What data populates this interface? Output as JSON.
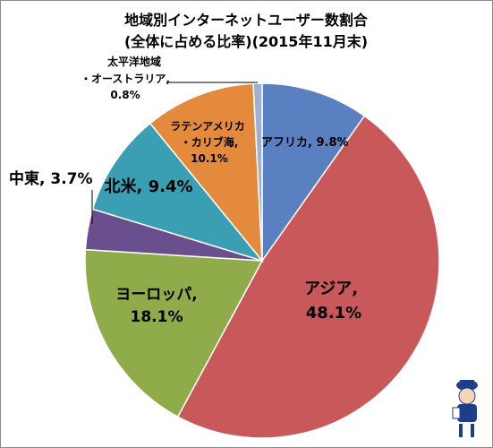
{
  "chart_data": {
    "type": "pie",
    "title": "地域別インターネットユーザー数割合",
    "subtitle": "(全体に占める比率)(2015年11月末)",
    "slices": [
      {
        "label": "アフリカ",
        "value": 9.8,
        "value_label": "9.8%",
        "color": "#5b80c2"
      },
      {
        "label": "アジア",
        "value": 48.1,
        "value_label": "48.1%",
        "color": "#c9585a"
      },
      {
        "label": "ヨーロッパ",
        "value": 18.1,
        "value_label": "18.1%",
        "color": "#8fab4a"
      },
      {
        "label": "中東",
        "value": 3.7,
        "value_label": "3.7%",
        "color": "#6a4f8e"
      },
      {
        "label": "北米",
        "value": 9.4,
        "value_label": "9.4%",
        "color": "#3a9fb3"
      },
      {
        "label": "ラテンアメリカ・カリブ海",
        "value": 10.1,
        "value_label": "10.1%",
        "color": "#e48a3c"
      },
      {
        "label": "太平洋地域・オーストラリア",
        "value": 0.8,
        "value_label": "0.8%",
        "color": "#9eb0d3"
      }
    ],
    "start_angle_deg": 0,
    "direction": "clockwise",
    "legend": "none"
  },
  "labels": {
    "africa": "アフリカ, 9.8%",
    "asia_name": "アジア,",
    "asia_value": "48.1%",
    "europe_name": "ヨーロッパ,",
    "europe_value": "18.1%",
    "middle_east": "中東, 3.7%",
    "north_america": "北米, 9.4%",
    "latam_line1": "ラテンアメリカ",
    "latam_line2": "・カリブ海,",
    "latam_line3": "10.1%",
    "pacific_line1": "太平洋地域",
    "pacific_line2": "・オーストラリア,",
    "pacific_line3": "0.8%"
  }
}
